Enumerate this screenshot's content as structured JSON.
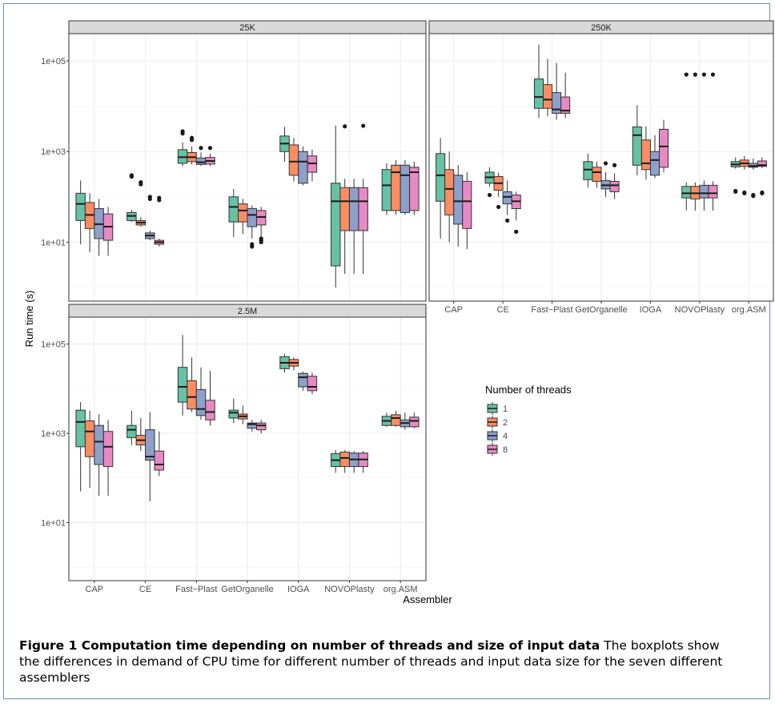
{
  "colors": {
    "1": "#66c2a5",
    "2": "#fc8d62",
    "4": "#8da0cb",
    "8": "#e78ac3"
  },
  "chart_data": {
    "type": "boxplot",
    "scale": "log10",
    "ylabel": "Run time (s)",
    "xlabel": "Assembler",
    "ylim": [
      0.5,
      400000
    ],
    "yticks": [
      {
        "value": 10,
        "label": "1e+01"
      },
      {
        "value": 1000,
        "label": "1e+03"
      },
      {
        "value": 100000,
        "label": "1e+05"
      }
    ],
    "categories": [
      "CAP",
      "CE",
      "Fast−Plast",
      "GetOrganelle",
      "IOGA",
      "NOVOPlasty",
      "org.ASM"
    ],
    "legend_title": "Number of threads",
    "legend_entries": [
      "1",
      "2",
      "4",
      "8"
    ],
    "panels": [
      {
        "name": "25K",
        "boxes": [
          [
            [
              9,
              30,
              70,
              120,
              230,
              []
            ],
            [
              6,
              20,
              40,
              75,
              120,
              []
            ],
            [
              5,
              12,
              25,
              55,
              90,
              []
            ],
            [
              5,
              11,
              22,
              42,
              60,
              []
            ]
          ],
          [
            [
              28,
              30,
              38,
              45,
              52,
              [
                300,
                280
              ]
            ],
            [
              22,
              24,
              27,
              30,
              36,
              [
                210,
                190
              ]
            ],
            [
              11,
              12,
              14,
              16,
              18,
              [
                100,
                90
              ]
            ],
            [
              8,
              9,
              10,
              11,
              12,
              [
                95,
                85
              ]
            ]
          ],
          [
            [
              480,
              550,
              750,
              1100,
              1600,
              [
                2800,
                2500
              ]
            ],
            [
              520,
              600,
              750,
              950,
              1300,
              [
                2000,
                1800
              ]
            ],
            [
              480,
              520,
              580,
              720,
              950,
              [
                1200
              ]
            ],
            [
              480,
              530,
              620,
              740,
              900,
              [
                1200
              ]
            ]
          ],
          [
            [
              13,
              28,
              60,
              100,
              150,
              []
            ],
            [
              15,
              28,
              50,
              70,
              90,
              []
            ],
            [
              12,
              22,
              40,
              55,
              65,
              [
                9,
                8
              ]
            ],
            [
              12,
              24,
              36,
              50,
              60,
              [
                12,
                11,
                10
              ]
            ]
          ],
          [
            [
              600,
              1000,
              1500,
              2200,
              3500,
              []
            ],
            [
              220,
              300,
              600,
              1400,
              2000,
              []
            ],
            [
              180,
              200,
              600,
              1000,
              1300,
              []
            ],
            [
              220,
              350,
              550,
              800,
              1100,
              []
            ]
          ],
          [
            [
              1,
              3,
              80,
              200,
              3800,
              []
            ],
            [
              2,
              18,
              80,
              160,
              250,
              [
                3600
              ]
            ],
            [
              2,
              18,
              80,
              160,
              250,
              []
            ],
            [
              2,
              18,
              80,
              160,
              250,
              [
                3700
              ]
            ]
          ],
          [
            [
              40,
              50,
              180,
              400,
              550,
              []
            ],
            [
              40,
              50,
              350,
              500,
              650,
              []
            ],
            [
              40,
              45,
              300,
              500,
              650,
              []
            ],
            [
              40,
              50,
              350,
              450,
              600,
              []
            ]
          ]
        ]
      },
      {
        "name": "250K",
        "boxes": [
          [
            [
              12,
              80,
              300,
              900,
              2000,
              []
            ],
            [
              10,
              40,
              150,
              400,
              1000,
              []
            ],
            [
              8,
              25,
              80,
              300,
              500,
              []
            ],
            [
              7,
              20,
              80,
              220,
              350,
              []
            ]
          ],
          [
            [
              170,
              200,
              270,
              350,
              450,
              [
                110
              ]
            ],
            [
              100,
              140,
              200,
              280,
              340,
              [
                60
              ]
            ],
            [
              40,
              70,
              100,
              130,
              230,
              [
                30
              ]
            ],
            [
              30,
              55,
              80,
              110,
              130,
              [
                17
              ]
            ]
          ],
          [
            [
              5500,
              9000,
              16000,
              40000,
              230000,
              []
            ],
            [
              6000,
              9000,
              14000,
              30000,
              110000,
              []
            ],
            [
              5000,
              7000,
              8500,
              20000,
              90000,
              []
            ],
            [
              5500,
              7000,
              8000,
              16000,
              55000,
              []
            ]
          ],
          [
            [
              160,
              240,
              400,
              600,
              900,
              []
            ],
            [
              160,
              220,
              350,
              450,
              600,
              []
            ],
            [
              100,
              150,
              180,
              230,
              350,
              [
                550
              ]
            ],
            [
              90,
              130,
              180,
              220,
              330,
              [
                500
              ]
            ]
          ],
          [
            [
              300,
              500,
              2300,
              3500,
              10500,
              []
            ],
            [
              240,
              400,
              550,
              1800,
              3600,
              []
            ],
            [
              260,
              300,
              650,
              1000,
              2300,
              []
            ],
            [
              350,
              450,
              1300,
              3100,
              5000,
              []
            ]
          ],
          [
            [
              50,
              95,
              120,
              170,
              210,
              [
                50000
              ]
            ],
            [
              50,
              90,
              120,
              170,
              210,
              [
                50000
              ]
            ],
            [
              50,
              95,
              120,
              180,
              230,
              [
                50000
              ]
            ],
            [
              50,
              95,
              120,
              180,
              220,
              [
                50000
              ]
            ]
          ],
          [
            [
              420,
              460,
              520,
              600,
              750,
              [
                135,
                130
              ]
            ],
            [
              400,
              470,
              550,
              650,
              800,
              [
                125,
                120
              ]
            ],
            [
              400,
              450,
              480,
              550,
              700,
              [
                110,
                105
              ]
            ],
            [
              430,
              470,
              500,
              620,
              750,
              [
                125,
                120
              ]
            ]
          ]
        ]
      },
      {
        "name": "2.5M",
        "boxes": [
          [
            [
              50,
              500,
              1800,
              3300,
              5000,
              []
            ],
            [
              60,
              300,
              1100,
              1900,
              3200,
              []
            ],
            [
              40,
              200,
              650,
              1500,
              2700,
              []
            ],
            [
              40,
              180,
              500,
              1100,
              2000,
              []
            ]
          ],
          [
            [
              550,
              800,
              1200,
              1500,
              3200,
              []
            ],
            [
              400,
              550,
              700,
              900,
              2200,
              []
            ],
            [
              30,
              250,
              300,
              1200,
              3000,
              []
            ],
            [
              110,
              150,
              200,
              400,
              1100,
              []
            ]
          ],
          [
            [
              2500,
              5000,
              11000,
              30000,
              160000,
              []
            ],
            [
              3000,
              3500,
              6500,
              15000,
              50000,
              []
            ],
            [
              2000,
              2500,
              3500,
              9500,
              30000,
              []
            ],
            [
              1500,
              2000,
              3000,
              5500,
              25000,
              []
            ]
          ],
          [
            [
              1700,
              2200,
              2900,
              3300,
              6000,
              []
            ],
            [
              1600,
              2100,
              2400,
              2700,
              4200,
              []
            ],
            [
              1100,
              1300,
              1600,
              1700,
              2000,
              []
            ],
            [
              1000,
              1200,
              1500,
              1700,
              2000,
              []
            ]
          ],
          [
            [
              23000,
              28000,
              38000,
              52000,
              60000,
              []
            ],
            [
              26000,
              32000,
              38000,
              45000,
              50000,
              []
            ],
            [
              9000,
              11000,
              18000,
              22000,
              24000,
              []
            ],
            [
              7500,
              9000,
              11000,
              19000,
              23000,
              []
            ]
          ],
          [
            [
              130,
              180,
              250,
              350,
              420,
              []
            ],
            [
              130,
              180,
              280,
              380,
              420,
              []
            ],
            [
              130,
              180,
              260,
              360,
              400,
              []
            ],
            [
              130,
              180,
              260,
              360,
              400,
              []
            ]
          ],
          [
            [
              1400,
              1500,
              1900,
              2400,
              2900,
              []
            ],
            [
              1400,
              1500,
              2200,
              2600,
              3200,
              []
            ],
            [
              1200,
              1400,
              1700,
              2000,
              2900,
              []
            ],
            [
              1300,
              1400,
              1900,
              2300,
              2900,
              []
            ]
          ]
        ]
      }
    ]
  },
  "caption": {
    "bold": "Figure 1 Computation time depending on number of threads and size of input data",
    "text": " The boxplots show the differences in demand of CPU time for different number of threads and input data size for the seven different assemblers"
  }
}
